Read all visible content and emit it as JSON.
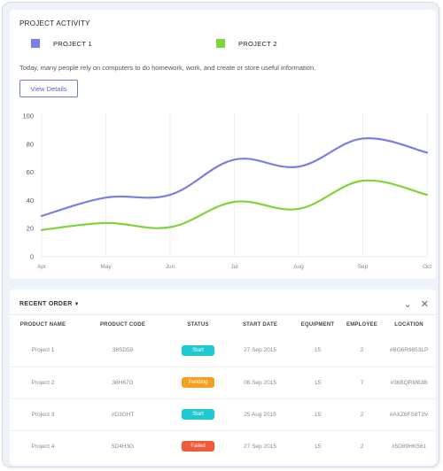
{
  "activity": {
    "title": "PROJECT ACTIVITY",
    "legend": [
      {
        "label": "PROJECT 1",
        "color": "#7b7fe0"
      },
      {
        "label": "PROJECT 2",
        "color": "#7fd43a"
      }
    ],
    "description": "Today, many people rely on computers to do homework, work, and create or store useful information.",
    "button_label": "View Details"
  },
  "chart_data": {
    "type": "line",
    "categories": [
      "Apr",
      "May",
      "Jun",
      "Jul",
      "Aug",
      "Sep",
      "Oct"
    ],
    "series": [
      {
        "name": "PROJECT 1",
        "color": "#7b7fe0",
        "values": [
          29,
          42,
          44,
          69,
          64,
          84,
          74
        ]
      },
      {
        "name": "PROJECT 2",
        "color": "#7fd43a",
        "values": [
          19,
          24,
          21,
          39,
          34,
          54,
          44
        ]
      }
    ],
    "yticks": [
      0,
      20,
      40,
      60,
      80,
      100
    ],
    "ylim": [
      0,
      100
    ],
    "grid": "vertical"
  },
  "orders": {
    "title": "RECENT ORDER",
    "columns": [
      "PRODUCT NAME",
      "PRODUCT CODE",
      "STATUS",
      "START DATE",
      "EQUIPMENT",
      "EMPLOYEE",
      "LOCATION"
    ],
    "rows": [
      {
        "name": "Project 1",
        "code": "38SD59",
        "status": "Start",
        "status_color": "#1ec8d4",
        "date": "27 Sep 2015",
        "equipment": "15",
        "employee": "2",
        "location": "#BG6R9853LP"
      },
      {
        "name": "Project 2",
        "code": "38H67G",
        "status": "Pending",
        "status_color": "#f5a11d",
        "date": "08 Sep 2015",
        "equipment": "15",
        "employee": "7",
        "location": "#36BQRM83B"
      },
      {
        "name": "Project 3",
        "code": "#D3GHT",
        "status": "Start",
        "status_color": "#1ec8d4",
        "date": "25 Aug 2015",
        "equipment": "15",
        "employee": "2",
        "location": "#AXZ6FS8T3V"
      },
      {
        "name": "Project 4",
        "code": "5D4H3G",
        "status": "Failed",
        "status_color": "#f05a38",
        "date": "27 Sep 2015",
        "equipment": "15",
        "employee": "2",
        "location": "#5D89HK561"
      }
    ]
  }
}
